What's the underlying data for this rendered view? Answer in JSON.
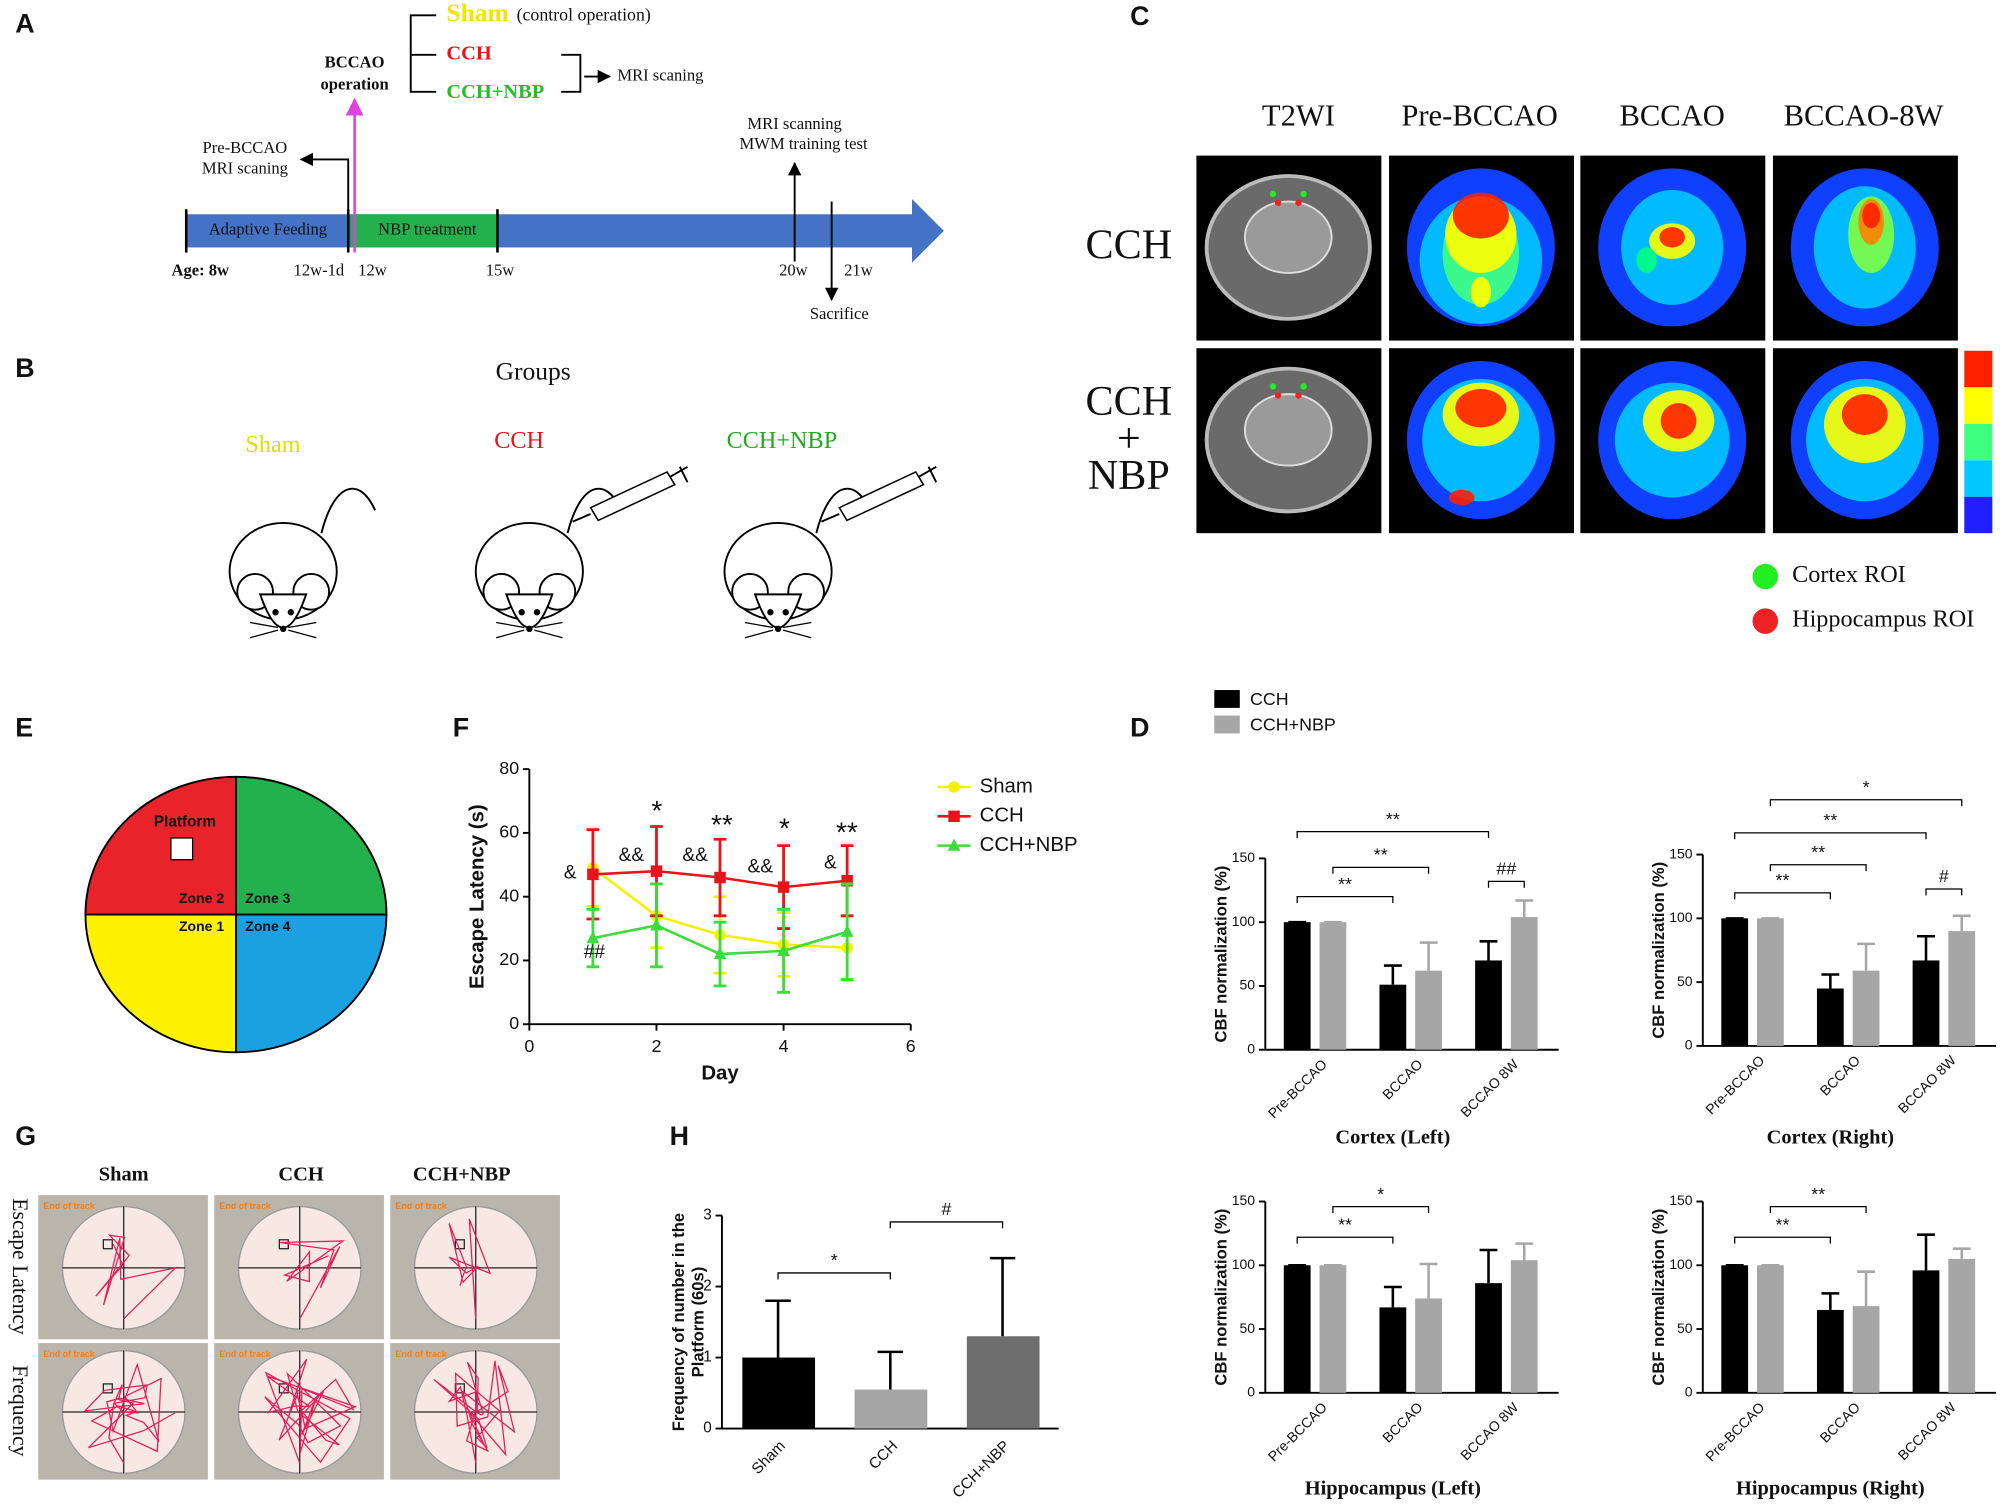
{
  "labels": [
    "A",
    "B",
    "C",
    "D",
    "E",
    "F",
    "G",
    "H"
  ],
  "panel_a": {
    "sham": "Sham",
    "sham_note": "(control operation)",
    "cch": "CCH",
    "cch_nbp": "CCH+NBP",
    "operation": [
      "BCCAO",
      "operation"
    ],
    "mri_after": "MRI scaning",
    "pre": [
      "Pre-BCCAO",
      "MRI scaning"
    ],
    "training": [
      "MRI scanning",
      "MWM training test"
    ],
    "phases": [
      "Adaptive Feeding",
      "NBP treatment"
    ],
    "ages": [
      "Age: 8w",
      "12w-1d",
      "12w",
      "15w",
      "20w",
      "21w"
    ],
    "sacrifice": "Sacrifice"
  },
  "panel_b": {
    "title": "Groups",
    "groups": [
      "Sham",
      "CCH",
      "CCH+NBP"
    ]
  },
  "panel_c": {
    "columns": [
      "T2WI",
      "Pre-BCCAO",
      "BCCAO",
      "BCCAO-8W"
    ],
    "rows": [
      [
        "CCH"
      ],
      [
        "CCH",
        "+",
        "NBP"
      ]
    ],
    "legend": [
      "Cortex ROI",
      "Hippocampus ROI"
    ]
  },
  "panel_e": {
    "platform": "Platform",
    "zones": [
      "Zone 1",
      "Zone 2",
      "Zone 3",
      "Zone 4"
    ]
  },
  "panel_g": {
    "columns": [
      "Sham",
      "CCH",
      "CCH+NBP"
    ],
    "rows": [
      "Escape Latency",
      "Frequency"
    ],
    "track_label": "End of track"
  },
  "chart_data": [
    {
      "type": "line",
      "xlabel": "Day",
      "ylabel": "Escape Latency (s)",
      "x": [
        1,
        2,
        3,
        4,
        5
      ],
      "xlim": [
        0,
        6
      ],
      "xticks": [
        0,
        2,
        4,
        6
      ],
      "ylim": [
        0,
        80
      ],
      "yticks": [
        0,
        20,
        40,
        60,
        80
      ],
      "legend": "right",
      "series": [
        {
          "name": "Sham",
          "color": "#f5f000",
          "values": [
            49,
            34,
            28,
            25,
            24
          ],
          "errors": [
            12,
            10,
            12,
            10,
            10
          ]
        },
        {
          "name": "CCH",
          "color": "#e8141c",
          "values": [
            47,
            48,
            46,
            43,
            45
          ],
          "errors": [
            14,
            14,
            12,
            13,
            11
          ]
        },
        {
          "name": "CCH+NBP",
          "color": "#3ddc3d",
          "values": [
            27,
            31,
            22,
            23,
            29
          ],
          "errors": [
            9,
            13,
            10,
            13,
            15
          ]
        }
      ],
      "annotations": [
        "&",
        "##",
        "*",
        "&&",
        "**",
        "&&",
        "*",
        "&&",
        "**",
        "&"
      ]
    },
    {
      "type": "bar",
      "ylabel": [
        "Frequency of number in the",
        "Platform (60s)"
      ],
      "categories": [
        "Sham",
        "CCH",
        "CCH+NBP"
      ],
      "values": [
        1.0,
        0.55,
        1.3
      ],
      "errors": [
        0.8,
        0.53,
        1.1
      ],
      "colors": [
        "#000000",
        "#a6a6a6",
        "#6e6e6e"
      ],
      "ylim": [
        0,
        3
      ],
      "yticks": [
        0,
        1,
        2,
        3
      ],
      "significance": [
        {
          "label": "*",
          "from": 0,
          "to": 1
        },
        {
          "label": "#",
          "from": 1,
          "to": 2
        }
      ]
    },
    {
      "type": "bar",
      "xlabel": "Cortex (Left)",
      "ylabel": "CBF normalization (%)",
      "categories": [
        "Pre-BCCAO",
        "BCCAO",
        "BCCAO 8W"
      ],
      "ylim": [
        0,
        150
      ],
      "yticks": [
        0,
        50,
        100,
        150
      ],
      "series": [
        {
          "name": "CCH",
          "color": "#000000",
          "values": [
            100,
            51,
            70
          ],
          "errors": [
            0,
            15,
            15
          ]
        },
        {
          "name": "CCH+NBP",
          "color": "#a6a6a6",
          "values": [
            100,
            62,
            104
          ],
          "errors": [
            0,
            22,
            13
          ]
        }
      ],
      "significance": [
        {
          "label": "**",
          "from": [
            0,
            0
          ],
          "to": [
            2,
            0
          ]
        },
        {
          "label": "**",
          "from": [
            0,
            1
          ],
          "to": [
            1,
            1
          ]
        },
        {
          "label": "**",
          "from": [
            0,
            0
          ],
          "to": [
            1,
            0
          ]
        },
        {
          "label": "##",
          "from": [
            2,
            0
          ],
          "to": [
            2,
            1
          ]
        }
      ]
    },
    {
      "type": "bar",
      "xlabel": "Cortex (Right)",
      "ylabel": "CBF normalization (%)",
      "categories": [
        "Pre-BCCAO",
        "BCCAO",
        "BCCAO 8W"
      ],
      "ylim": [
        0,
        150
      ],
      "yticks": [
        0,
        50,
        100,
        150
      ],
      "series": [
        {
          "color": "#000000",
          "values": [
            100,
            45,
            67
          ],
          "errors": [
            0,
            11,
            19
          ]
        },
        {
          "color": "#a6a6a6",
          "values": [
            100,
            59,
            90
          ],
          "errors": [
            0,
            21,
            12
          ]
        }
      ],
      "significance": [
        {
          "label": "*",
          "from": [
            0,
            1
          ],
          "to": [
            2,
            1
          ]
        },
        {
          "label": "**",
          "from": [
            0,
            0
          ],
          "to": [
            2,
            0
          ]
        },
        {
          "label": "**",
          "from": [
            0,
            1
          ],
          "to": [
            1,
            1
          ]
        },
        {
          "label": "**",
          "from": [
            0,
            0
          ],
          "to": [
            1,
            0
          ]
        },
        {
          "label": "#",
          "from": [
            2,
            0
          ],
          "to": [
            2,
            1
          ]
        }
      ]
    },
    {
      "type": "bar",
      "xlabel": "Hippocampus (Left)",
      "ylabel": "CBF normalization (%)",
      "categories": [
        "Pre-BCCAO",
        "BCCAO",
        "BCCAO 8W"
      ],
      "ylim": [
        0,
        150
      ],
      "yticks": [
        0,
        50,
        100,
        150
      ],
      "series": [
        {
          "color": "#000000",
          "values": [
            100,
            67,
            86
          ],
          "errors": [
            0,
            16,
            26
          ]
        },
        {
          "color": "#a6a6a6",
          "values": [
            100,
            74,
            104
          ],
          "errors": [
            0,
            27,
            13
          ]
        }
      ],
      "significance": [
        {
          "label": "*",
          "from": [
            0,
            1
          ],
          "to": [
            1,
            1
          ]
        },
        {
          "label": "**",
          "from": [
            0,
            0
          ],
          "to": [
            1,
            0
          ]
        }
      ]
    },
    {
      "type": "bar",
      "xlabel": "Hippocampus (Right)",
      "ylabel": "CBF normalization (%)",
      "categories": [
        "Pre-BCCAO",
        "BCCAO",
        "BCCAO 8W"
      ],
      "ylim": [
        0,
        150
      ],
      "yticks": [
        0,
        50,
        100,
        150
      ],
      "series": [
        {
          "color": "#000000",
          "values": [
            100,
            65,
            96
          ],
          "errors": [
            0,
            13,
            28
          ]
        },
        {
          "color": "#a6a6a6",
          "values": [
            100,
            68,
            105
          ],
          "errors": [
            0,
            27,
            8
          ]
        }
      ],
      "significance": [
        {
          "label": "**",
          "from": [
            0,
            1
          ],
          "to": [
            1,
            1
          ]
        },
        {
          "label": "**",
          "from": [
            0,
            0
          ],
          "to": [
            1,
            0
          ]
        }
      ]
    }
  ]
}
